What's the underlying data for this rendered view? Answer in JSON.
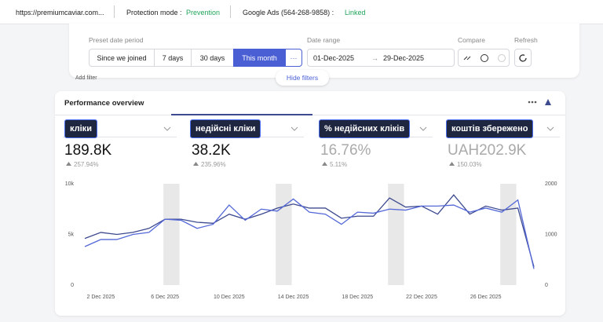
{
  "top_bar": {
    "site": "https://premiumcaviar.com...",
    "protection_label": "Protection mode :",
    "protection_value": "Prevention",
    "ads_label": "Google Ads (564-268-9858) :",
    "ads_value": "Linked"
  },
  "filters": {
    "preset_label": "Preset date period",
    "presets": [
      "Since we joined",
      "7 days",
      "30 days",
      "This month",
      "···"
    ],
    "date_range_label": "Date range",
    "date_from": "01-Dec-2025",
    "arrow": "→",
    "date_to": "29-Dec-2025",
    "compare_label": "Compare",
    "refresh_label": "Refresh",
    "add_filter": "Add filter",
    "hide_filters": "Hide filters"
  },
  "panel": {
    "title": "Performance overview",
    "metrics": [
      {
        "label": "кліки",
        "value": "189.8K",
        "change": "257.94%"
      },
      {
        "label": "недійсні кліки",
        "value": "38.2K",
        "change": "235.96%"
      },
      {
        "label": "% недійсних кліків",
        "value": "16.76%",
        "change": "5.11%"
      },
      {
        "label": "коштів збережено",
        "value": "UAH202.9K",
        "change": "150.03%"
      }
    ]
  },
  "chart": {
    "type": "line",
    "x": [
      null,
      "2 Dec 2025",
      null,
      null,
      null,
      "6 Dec 2025",
      null,
      null,
      null,
      "10 Dec 2025",
      null,
      null,
      null,
      "14 Dec 2025",
      null,
      null,
      null,
      "18 Dec 2025",
      null,
      null,
      null,
      "22 Dec 2025",
      null,
      null,
      null,
      "26 Dec 2025",
      null,
      null,
      null
    ],
    "ylim": [
      0,
      10000
    ],
    "yticks": [
      0,
      {
        "value": 5000,
        "label": "5k"
      },
      {
        "value": 10000,
        "label": "10k"
      }
    ],
    "y2lim": [
      0,
      2000
    ],
    "y2ticks": [
      0,
      1000,
      2000
    ],
    "series": [
      {
        "color": "#3d4a8f",
        "values": [
          4600,
          5200,
          5000,
          5200,
          5600,
          6500,
          6500,
          6200,
          6100,
          7000,
          6500,
          7000,
          7600,
          8000,
          7600,
          7600,
          6600,
          6800,
          6800,
          8600,
          7700,
          7800,
          7000,
          8900,
          7000,
          7800,
          7400,
          7600,
          1800
        ]
      },
      {
        "color": "#5468d8",
        "axis": "y2",
        "values": [
          760,
          900,
          900,
          1000,
          1040,
          1300,
          1280,
          1120,
          1200,
          1580,
          1280,
          1500,
          1460,
          1700,
          1440,
          1400,
          1200,
          1440,
          1420,
          1500,
          1480,
          1560,
          1560,
          1580,
          1440,
          1520,
          1440,
          1680,
          320
        ]
      }
    ]
  }
}
